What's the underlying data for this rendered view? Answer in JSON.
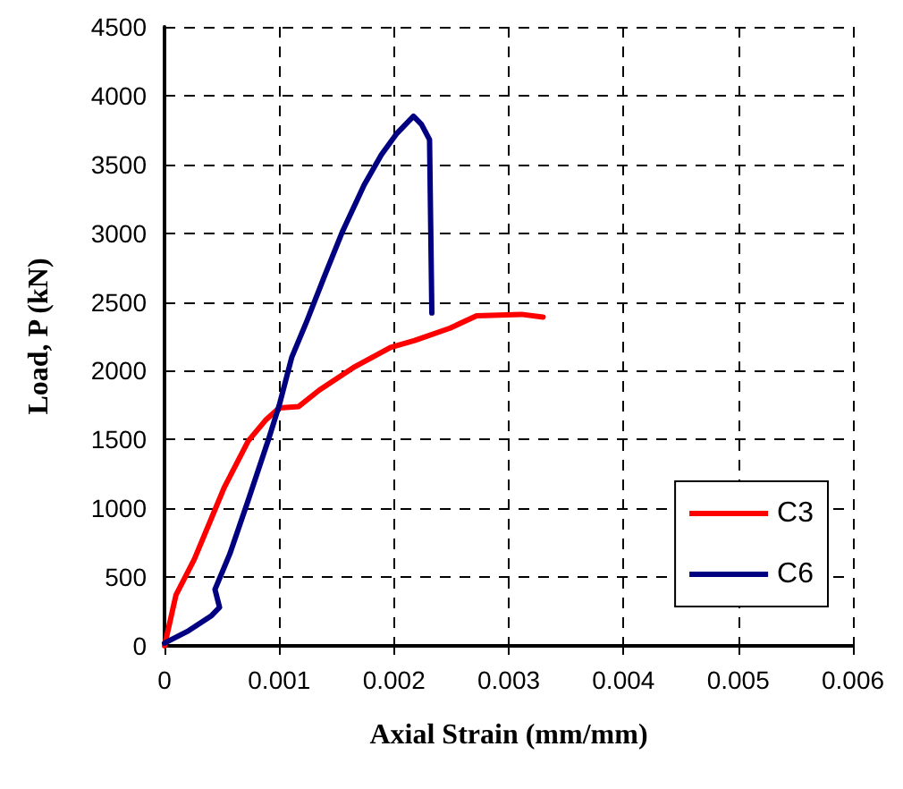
{
  "chart_data": {
    "type": "line",
    "xlabel": "Axial Strain (mm/mm)",
    "ylabel": "Load, P (kN)",
    "xlim": [
      0,
      0.006
    ],
    "xticks": [
      0,
      0.001,
      0.002,
      0.003,
      0.004,
      0.005,
      0.006
    ],
    "ylim": [
      0,
      4500
    ],
    "yticks": [
      0,
      500,
      1000,
      1500,
      2000,
      2500,
      3000,
      3500,
      4000,
      4500
    ],
    "grid": true,
    "legend": "bottom right",
    "marker": "none",
    "line_style": "solid",
    "series": [
      {
        "name": "C3",
        "color": "#ff0000",
        "x": [
          0,
          0.0001,
          0.00026,
          0.00041,
          0.00052,
          0.00073,
          0.00088,
          0.001,
          0.00117,
          0.00135,
          0.00166,
          0.00197,
          0.00218,
          0.00249,
          0.00272,
          0.00311,
          0.0033
        ],
        "values": [
          0,
          370,
          630,
          930,
          1150,
          1490,
          1640,
          1730,
          1740,
          1860,
          2030,
          2170,
          2220,
          2310,
          2400,
          2410,
          2390
        ]
      },
      {
        "name": "C6",
        "color": "#000080",
        "x": [
          0,
          0.00021,
          0.00041,
          0.00048,
          0.00044,
          0.00057,
          0.00073,
          0.00091,
          0.001,
          0.00111,
          0.00124,
          0.0014,
          0.00155,
          0.00174,
          0.00189,
          0.00202,
          0.00217,
          0.00224,
          0.00231,
          0.00233
        ],
        "values": [
          20,
          110,
          220,
          280,
          410,
          670,
          1060,
          1510,
          1750,
          2100,
          2360,
          2700,
          3010,
          3350,
          3570,
          3720,
          3850,
          3790,
          3680,
          2420
        ]
      }
    ]
  }
}
